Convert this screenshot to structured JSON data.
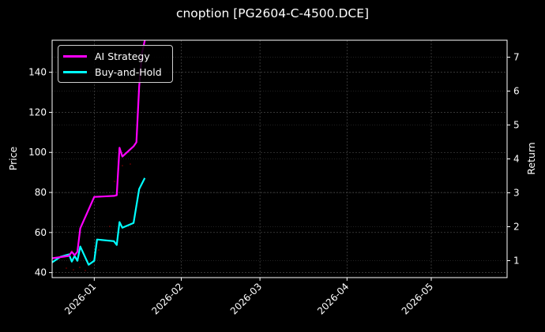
{
  "title": "cnoption [PG2604-C-4500.DCE]",
  "colors": {
    "background": "#000000",
    "ai_strategy": "#ff00ff",
    "buy_and_hold": "#00ffff",
    "axes": "#ffffff",
    "grid": "#555555",
    "scatter_dots": "#8b0000"
  },
  "legend": {
    "items": [
      {
        "label": "AI Strategy",
        "color": "#ff00ff"
      },
      {
        "label": "Buy-and-Hold",
        "color": "#00ffff"
      }
    ]
  },
  "axes": {
    "left_label": "Price",
    "right_label": "Return",
    "left_ticks": [
      "40",
      "60",
      "80",
      "100",
      "120",
      "140"
    ],
    "right_ticks": [
      "1",
      "2",
      "3",
      "4",
      "5",
      "6",
      "7"
    ],
    "x_ticks": [
      "2026-01",
      "2026-02",
      "2026-03",
      "2026-04",
      "2026-05"
    ]
  },
  "chart_data": {
    "type": "line",
    "title": "cnoption [PG2604-C-4500.DCE]",
    "xlabel": "",
    "ylabel": "Price",
    "ylabel_right": "Return",
    "xlim": [
      "2025-12-17",
      "2026-05-28"
    ],
    "ylim": [
      37.5,
      156
    ],
    "ylim_right": [
      0.5,
      7.5
    ],
    "x_ticks": [
      "2026-01",
      "2026-02",
      "2026-03",
      "2026-04",
      "2026-05"
    ],
    "grid": true,
    "legend_position": "upper left",
    "series": [
      {
        "name": "AI Strategy",
        "axis": "right",
        "color": "#ff00ff",
        "x": [
          "2025-12-17",
          "2025-12-23",
          "2025-12-24",
          "2025-12-25",
          "2025-12-26",
          "2025-12-27",
          "2026-01-01",
          "2026-01-08",
          "2026-01-09",
          "2026-01-10",
          "2026-01-11",
          "2026-01-15",
          "2026-01-16",
          "2026-01-17",
          "2026-01-18",
          "2026-01-19"
        ],
        "values": [
          1.07,
          1.14,
          1.26,
          1.16,
          1.26,
          1.95,
          2.88,
          2.91,
          2.93,
          4.33,
          4.07,
          4.37,
          4.49,
          6.14,
          7.12,
          7.49
        ]
      },
      {
        "name": "Buy-and-Hold",
        "axis": "left",
        "color": "#00ffff",
        "x": [
          "2025-12-17",
          "2025-12-20",
          "2025-12-23",
          "2025-12-24",
          "2025-12-25",
          "2025-12-26",
          "2025-12-27",
          "2025-12-30",
          "2026-01-01",
          "2026-01-02",
          "2026-01-08",
          "2026-01-09",
          "2026-01-10",
          "2026-01-11",
          "2026-01-15",
          "2026-01-17",
          "2026-01-19"
        ],
        "values": [
          45.1,
          47.9,
          49.1,
          45.5,
          48.3,
          45.9,
          53.0,
          43.9,
          45.9,
          56.5,
          55.7,
          53.8,
          65.2,
          62.4,
          64.8,
          81.7,
          87.2
        ]
      }
    ]
  }
}
